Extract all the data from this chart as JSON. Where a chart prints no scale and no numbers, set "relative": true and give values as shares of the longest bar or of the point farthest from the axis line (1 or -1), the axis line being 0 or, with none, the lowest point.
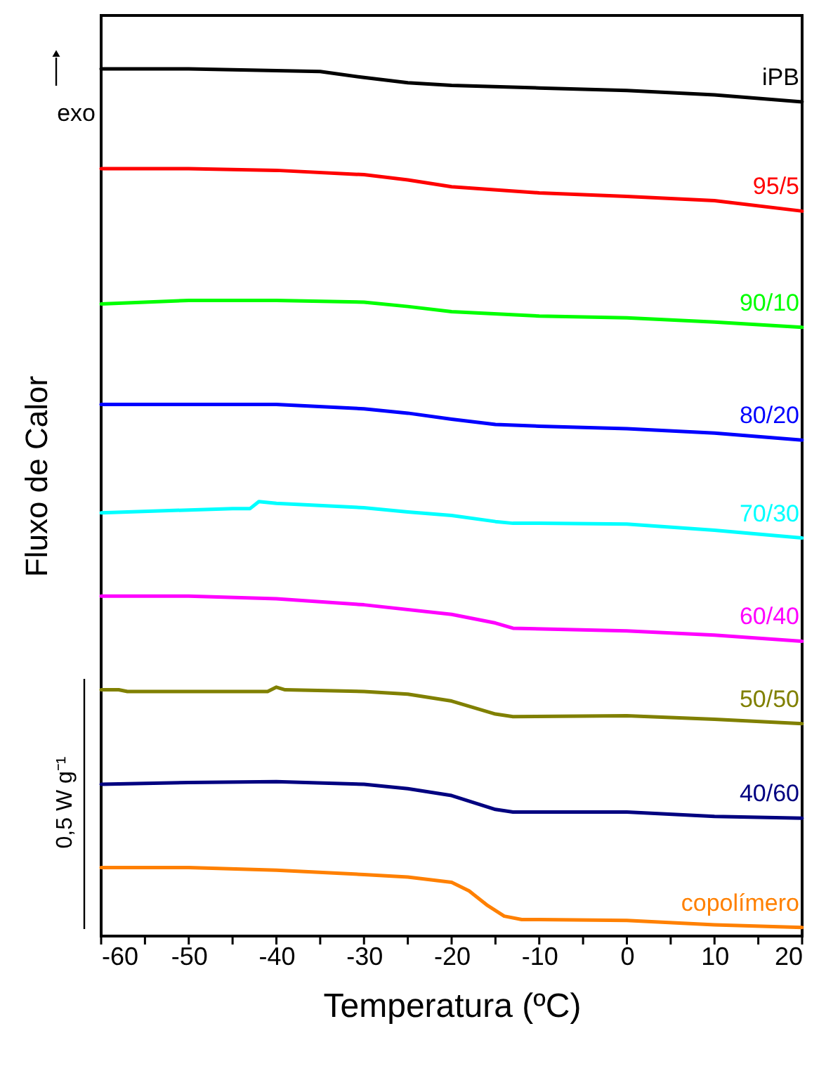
{
  "chart_data": {
    "type": "line",
    "relative": true,
    "xlabel": "Temperatura (ºC)",
    "ylabel": "Fluxo de Calor",
    "xlim": [
      -60,
      20
    ],
    "xticks": [
      -60,
      {
        "value": -55,
        "label": null
      },
      -50,
      {
        "value": -45,
        "label": null
      },
      -40,
      {
        "value": -35,
        "label": null
      },
      -30,
      {
        "value": -25,
        "label": null
      },
      -20,
      {
        "value": -15,
        "label": null
      },
      -10,
      {
        "value": -5,
        "label": null
      },
      0,
      {
        "value": 5,
        "label": null
      },
      10,
      {
        "value": 15,
        "label": null
      },
      20
    ],
    "grid": false,
    "legend": false,
    "marker": "none",
    "line_style": "solid",
    "annotations": [
      "exo",
      "0,5 W g⁻¹"
    ],
    "series": [
      {
        "name": "iPB",
        "color": "#000000",
        "x": [
          -60,
          -50,
          -40,
          -35,
          -30,
          -25,
          -20,
          -10,
          0,
          10,
          20
        ],
        "values": [
          1.0,
          1.0,
          0.998,
          0.997,
          0.99,
          0.984,
          0.981,
          0.978,
          0.975,
          0.97,
          0.962
        ]
      },
      {
        "name": "95/5",
        "color": "#ff0000",
        "x": [
          -60,
          -50,
          -40,
          -30,
          -25,
          -20,
          -10,
          0,
          10,
          20
        ],
        "values": [
          0.885,
          0.885,
          0.883,
          0.878,
          0.872,
          0.864,
          0.857,
          0.853,
          0.848,
          0.836
        ]
      },
      {
        "name": "90/10",
        "color": "#00ff00",
        "x": [
          -60,
          -50,
          -40,
          -30,
          -25,
          -20,
          -10,
          0,
          10,
          20
        ],
        "values": [
          0.729,
          0.733,
          0.733,
          0.731,
          0.726,
          0.72,
          0.715,
          0.713,
          0.708,
          0.702
        ]
      },
      {
        "name": "80/20",
        "color": "#0000ff",
        "x": [
          -60,
          -50,
          -40,
          -30,
          -25,
          -20,
          -15,
          -10,
          0,
          10,
          20
        ],
        "values": [
          0.613,
          0.613,
          0.613,
          0.608,
          0.603,
          0.596,
          0.59,
          0.588,
          0.585,
          0.58,
          0.572
        ]
      },
      {
        "name": "70/30",
        "color": "#00ffff",
        "x": [
          -60,
          -45,
          -43,
          -42,
          -40,
          -30,
          -25,
          -20,
          -15,
          -13,
          -10,
          0,
          10,
          20
        ],
        "values": [
          0.488,
          0.493,
          0.493,
          0.501,
          0.499,
          0.494,
          0.489,
          0.485,
          0.478,
          0.476,
          0.476,
          0.475,
          0.468,
          0.459
        ]
      },
      {
        "name": "60/40",
        "color": "#ff00ff",
        "x": [
          -60,
          -50,
          -40,
          -30,
          -20,
          -15,
          -13,
          0,
          10,
          20
        ],
        "values": [
          0.392,
          0.392,
          0.389,
          0.382,
          0.371,
          0.361,
          0.355,
          0.352,
          0.347,
          0.34
        ]
      },
      {
        "name": "50/50",
        "color": "#808000",
        "x": [
          -60,
          -58,
          -57,
          -41,
          -40,
          -39,
          -30,
          -25,
          -20,
          -15,
          -13,
          0,
          10,
          20
        ],
        "values": [
          0.284,
          0.284,
          0.282,
          0.282,
          0.287,
          0.284,
          0.282,
          0.279,
          0.271,
          0.256,
          0.253,
          0.254,
          0.25,
          0.245
        ]
      },
      {
        "name": "40/60",
        "color": "#000080",
        "x": [
          -60,
          -50,
          -40,
          -30,
          -25,
          -20,
          -15,
          -13,
          -10,
          0,
          10,
          20
        ],
        "values": [
          0.175,
          0.177,
          0.178,
          0.175,
          0.17,
          0.162,
          0.146,
          0.143,
          0.143,
          0.143,
          0.138,
          0.136
        ]
      },
      {
        "name": "copolímero",
        "color": "#ff8000",
        "x": [
          -60,
          -50,
          -40,
          -30,
          -25,
          -20,
          -18,
          -16,
          -14,
          -12,
          -10,
          0,
          10,
          20
        ],
        "values": [
          0.079,
          0.079,
          0.076,
          0.071,
          0.068,
          0.062,
          0.052,
          0.036,
          0.023,
          0.019,
          0.019,
          0.018,
          0.013,
          0.01
        ]
      }
    ]
  }
}
